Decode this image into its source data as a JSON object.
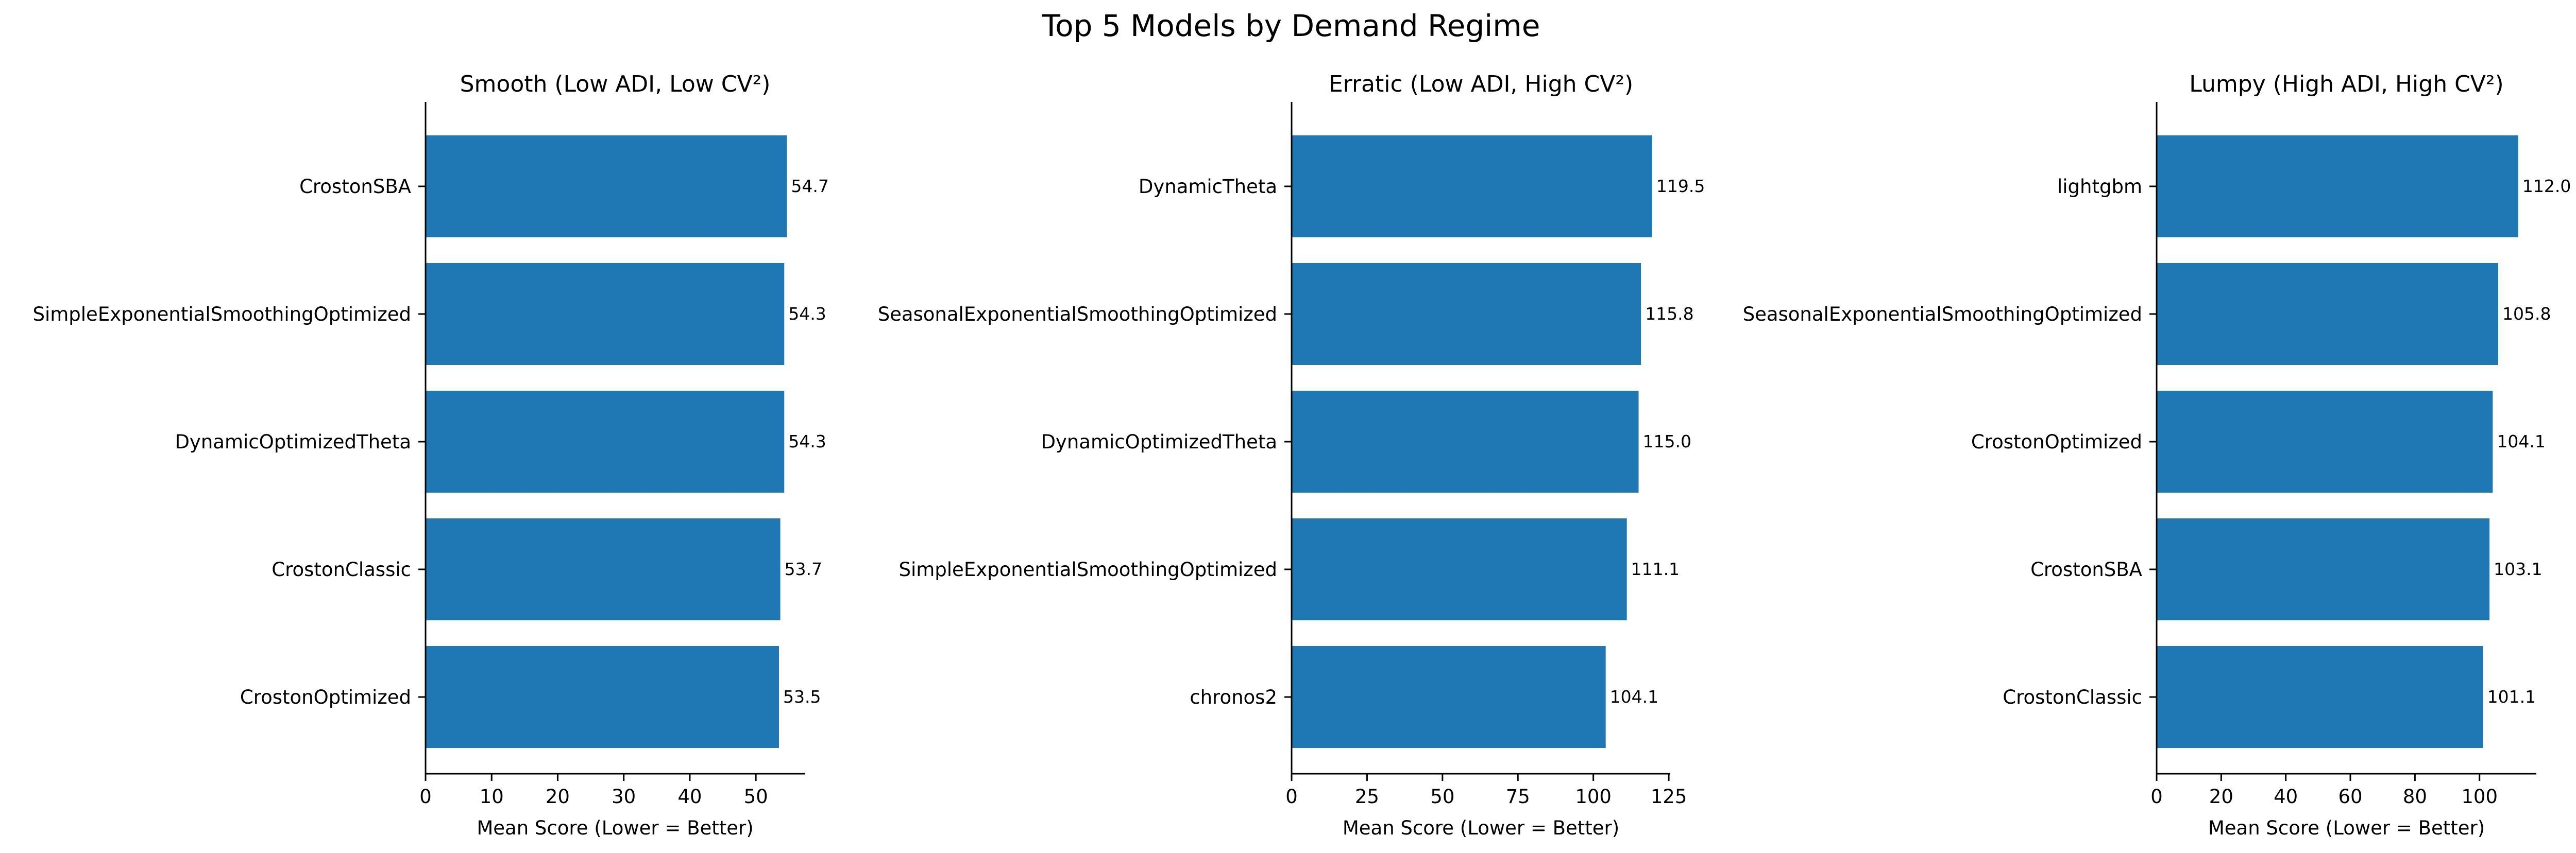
{
  "title": "Top 5 Models by Demand Regime",
  "colors": {
    "bar": "#1f77b4",
    "text": "#000000",
    "axis": "#000000"
  },
  "chart_data": [
    {
      "type": "bar",
      "orientation": "horizontal",
      "title": "Smooth (Low ADI, Low CV²)",
      "xlabel": "Mean Score (Lower = Better)",
      "ylabel": "",
      "categories": [
        "CrostonSBA",
        "SimpleExponentialSmoothingOptimized",
        "DynamicOptimizedTheta",
        "CrostonClassic",
        "CrostonOptimized"
      ],
      "values": [
        54.7,
        54.3,
        54.3,
        53.7,
        53.5
      ],
      "data_labels": [
        "54.7",
        "54.3",
        "54.3",
        "53.7",
        "53.5"
      ],
      "xlim": [
        0,
        57.4
      ],
      "xticks": [
        0,
        10,
        20,
        30,
        40,
        50
      ],
      "grid": false,
      "legend": "none"
    },
    {
      "type": "bar",
      "orientation": "horizontal",
      "title": "Erratic (Low ADI, High CV²)",
      "xlabel": "Mean Score (Lower = Better)",
      "ylabel": "",
      "categories": [
        "DynamicTheta",
        "SeasonalExponentialSmoothingOptimized",
        "DynamicOptimizedTheta",
        "SimpleExponentialSmoothingOptimized",
        "chronos2"
      ],
      "values": [
        119.5,
        115.8,
        115.0,
        111.1,
        104.1
      ],
      "data_labels": [
        "119.5",
        "115.8",
        "115.0",
        "111.1",
        "104.1"
      ],
      "xlim": [
        0,
        125.5
      ],
      "xticks": [
        0,
        25,
        50,
        75,
        100,
        125
      ],
      "grid": false,
      "legend": "none"
    },
    {
      "type": "bar",
      "orientation": "horizontal",
      "title": "Lumpy (High ADI, High CV²)",
      "xlabel": "Mean Score (Lower = Better)",
      "ylabel": "",
      "categories": [
        "lightgbm",
        "SeasonalExponentialSmoothingOptimized",
        "CrostonOptimized",
        "CrostonSBA",
        "CrostonClassic"
      ],
      "values": [
        112.0,
        105.8,
        104.1,
        103.1,
        101.1
      ],
      "data_labels": [
        "112.0",
        "105.8",
        "104.1",
        "103.1",
        "101.1"
      ],
      "xlim": [
        0,
        117.6
      ],
      "xticks": [
        0,
        20,
        40,
        60,
        80,
        100
      ],
      "grid": false,
      "legend": "none"
    }
  ]
}
